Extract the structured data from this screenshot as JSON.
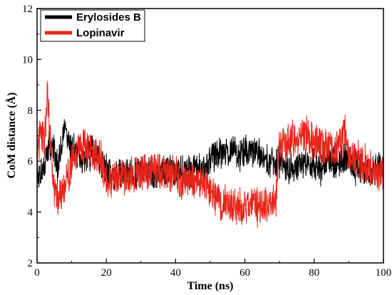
{
  "chart_data": {
    "type": "line",
    "xlabel": "Time (ns)",
    "ylabel": "CoM distance (Å)",
    "xlim": [
      0,
      100
    ],
    "ylim": [
      2,
      12
    ],
    "xticks": [
      "0",
      "20",
      "40",
      "60",
      "80",
      "100"
    ],
    "yticks": [
      "2",
      "4",
      "6",
      "8",
      "10",
      "12"
    ],
    "grid": false,
    "legend_position": "top-left",
    "series": [
      {
        "name": "Erylosides B",
        "color": "#000000",
        "x": [
          0,
          2,
          4,
          6,
          8,
          10,
          12,
          14,
          16,
          18,
          20,
          22,
          24,
          26,
          28,
          30,
          32,
          34,
          36,
          38,
          40,
          42,
          44,
          46,
          48,
          50,
          52,
          54,
          56,
          58,
          60,
          62,
          64,
          66,
          68,
          70,
          72,
          74,
          76,
          78,
          80,
          82,
          84,
          86,
          88,
          90,
          92,
          94,
          96,
          98,
          100
        ],
        "y": [
          5.6,
          5.8,
          6.8,
          5.9,
          7.2,
          6.5,
          6.3,
          6.0,
          6.4,
          6.0,
          5.6,
          5.4,
          5.5,
          5.6,
          5.5,
          5.7,
          5.6,
          5.5,
          5.6,
          5.6,
          5.5,
          5.6,
          5.5,
          5.6,
          5.7,
          6.2,
          6.3,
          6.4,
          6.5,
          6.3,
          6.4,
          6.6,
          6.2,
          6.0,
          5.9,
          6.0,
          5.8,
          5.7,
          5.8,
          5.9,
          5.8,
          5.7,
          6.0,
          6.0,
          6.1,
          6.0,
          5.8,
          5.7,
          5.6,
          5.8,
          5.8
        ]
      },
      {
        "name": "Lopinavir",
        "color": "#e8241a",
        "x": [
          0,
          1,
          2,
          3,
          4,
          5,
          6,
          8,
          10,
          12,
          14,
          16,
          18,
          20,
          22,
          24,
          26,
          28,
          30,
          32,
          34,
          36,
          38,
          40,
          42,
          44,
          46,
          48,
          50,
          52,
          54,
          56,
          58,
          60,
          62,
          64,
          66,
          68,
          69,
          70,
          72,
          74,
          76,
          78,
          80,
          82,
          84,
          86,
          88,
          89,
          90,
          92,
          94,
          96,
          98,
          100
        ],
        "y": [
          6.3,
          7.2,
          6.8,
          8.7,
          6.6,
          4.8,
          4.5,
          4.9,
          6.0,
          6.5,
          6.7,
          6.3,
          6.2,
          5.3,
          5.2,
          5.5,
          5.3,
          5.4,
          5.6,
          5.5,
          5.7,
          5.6,
          5.4,
          5.5,
          5.2,
          5.3,
          5.1,
          5.2,
          4.7,
          4.5,
          4.2,
          4.3,
          4.1,
          4.3,
          4.4,
          4.2,
          4.3,
          4.4,
          4.6,
          6.7,
          6.8,
          7.0,
          6.9,
          7.0,
          6.8,
          6.6,
          6.5,
          6.4,
          6.9,
          7.2,
          6.3,
          6.2,
          5.9,
          5.6,
          5.4,
          5.3
        ]
      }
    ]
  }
}
